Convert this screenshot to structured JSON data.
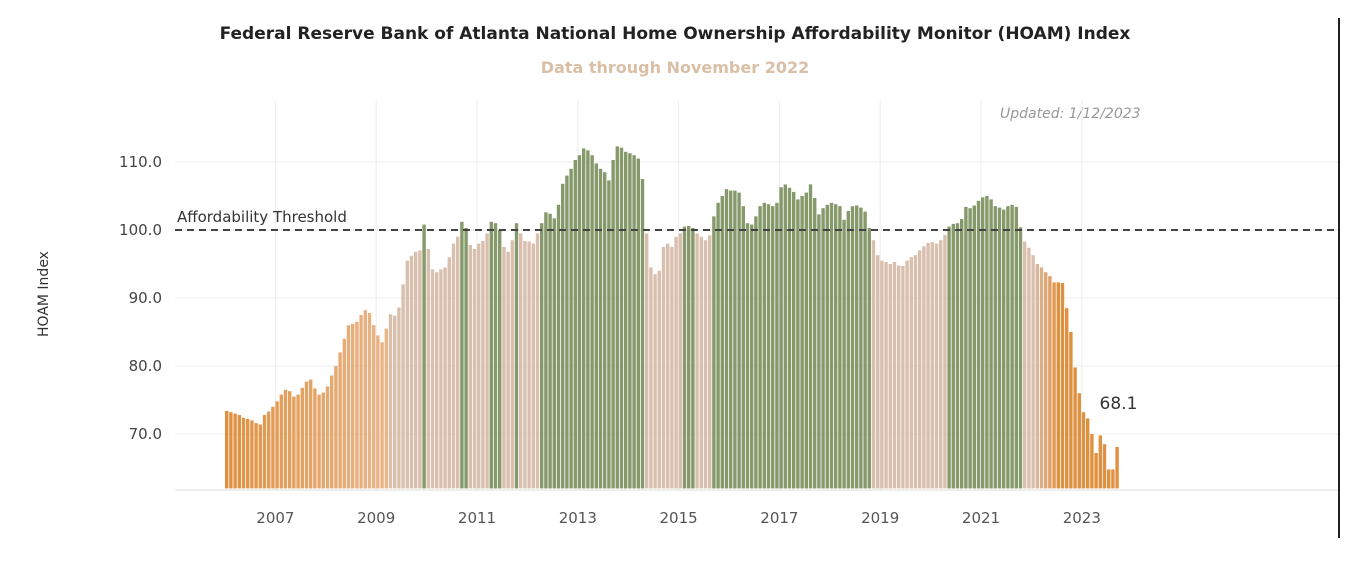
{
  "chart_data": {
    "type": "bar",
    "title": "Federal Reserve Bank of Atlanta National Home Ownership Affordability Monitor (HOAM) Index",
    "subtitle": "Data through November 2022",
    "updated": "Updated: 1/12/2023",
    "ylabel": "HOAM Index",
    "xlabel": "",
    "ylim": [
      62,
      116
    ],
    "yticks": [
      "70.0",
      "80.0",
      "90.0",
      "100.0",
      "110.0"
    ],
    "ytick_values": [
      70,
      80,
      90,
      100,
      110
    ],
    "xticks": [
      "2007",
      "2009",
      "2011",
      "2013",
      "2015",
      "2017",
      "2019",
      "2021",
      "2023"
    ],
    "xtick_values": [
      2007,
      2009,
      2011,
      2013,
      2015,
      2017,
      2019,
      2021,
      2023
    ],
    "x_start": "2006-01",
    "threshold": {
      "value": 100,
      "label": "Affordability Threshold"
    },
    "last_value_label": "68.1",
    "grid": true,
    "colors": {
      "title": "#222222",
      "subtitle": "#d9bfa5",
      "green": "#85996a",
      "light_tan": "#d9bfad",
      "orange_dark": "#e0913f",
      "orange_light": "#e8b68a",
      "threshold_line": "#444444",
      "grid": "#ececec"
    },
    "values": [
      73.4,
      73.2,
      73.0,
      72.8,
      72.4,
      72.2,
      72.0,
      71.6,
      71.4,
      72.8,
      73.3,
      74.0,
      74.8,
      75.8,
      76.5,
      76.3,
      75.5,
      75.8,
      76.8,
      77.7,
      78.0,
      76.7,
      75.8,
      76.1,
      77.0,
      78.6,
      80.0,
      82.0,
      84.0,
      86.0,
      86.2,
      86.5,
      87.5,
      88.2,
      87.8,
      86.0,
      84.5,
      83.5,
      85.5,
      87.6,
      87.4,
      88.6,
      92.0,
      95.5,
      96.2,
      96.8,
      97.0,
      100.8,
      97.2,
      94.2,
      93.8,
      94.2,
      94.5,
      96.0,
      98.0,
      99.0,
      101.2,
      100.3,
      97.8,
      97.2,
      98.0,
      98.4,
      99.5,
      101.2,
      101.0,
      100.0,
      97.5,
      96.8,
      98.5,
      101.0,
      99.5,
      98.4,
      98.3,
      98.0,
      99.5,
      101.0,
      102.6,
      102.4,
      101.7,
      103.7,
      106.8,
      108.0,
      109.0,
      110.3,
      111.0,
      112.0,
      111.7,
      111.0,
      109.8,
      109.0,
      108.5,
      107.3,
      110.3,
      112.3,
      112.1,
      111.5,
      111.3,
      111.0,
      110.5,
      107.5,
      99.5,
      94.5,
      93.5,
      94.0,
      97.5,
      98.0,
      97.5,
      99.0,
      99.5,
      100.5,
      100.6,
      100.3,
      99.5,
      99.0,
      98.5,
      99.2,
      102.0,
      104.0,
      105.0,
      106.0,
      105.8,
      105.8,
      105.5,
      103.5,
      101.0,
      100.8,
      102.0,
      103.5,
      104.0,
      103.8,
      103.5,
      104.0,
      106.3,
      106.7,
      106.2,
      105.6,
      104.5,
      105.0,
      105.5,
      106.7,
      104.7,
      102.3,
      103.2,
      103.7,
      104.0,
      103.8,
      103.5,
      101.5,
      102.8,
      103.5,
      103.6,
      103.3,
      102.7,
      100.3,
      98.5,
      96.3,
      95.5,
      95.3,
      95.0,
      95.3,
      94.8,
      94.7,
      95.5,
      96.0,
      96.3,
      97.0,
      97.6,
      98.1,
      98.2,
      98.0,
      98.5,
      99.3,
      100.5,
      100.9,
      101.0,
      101.6,
      103.4,
      103.2,
      103.6,
      104.3,
      104.8,
      105.0,
      104.5,
      103.5,
      103.3,
      103.0,
      103.5,
      103.7,
      103.4,
      100.4,
      98.3,
      97.4,
      96.3,
      95.0,
      94.5,
      93.8,
      93.2,
      92.3,
      92.3,
      92.2,
      88.5,
      85.0,
      79.8,
      76.0,
      73.2,
      72.3,
      70.0,
      67.2,
      69.8,
      68.5,
      64.8,
      64.8,
      68.1
    ]
  }
}
